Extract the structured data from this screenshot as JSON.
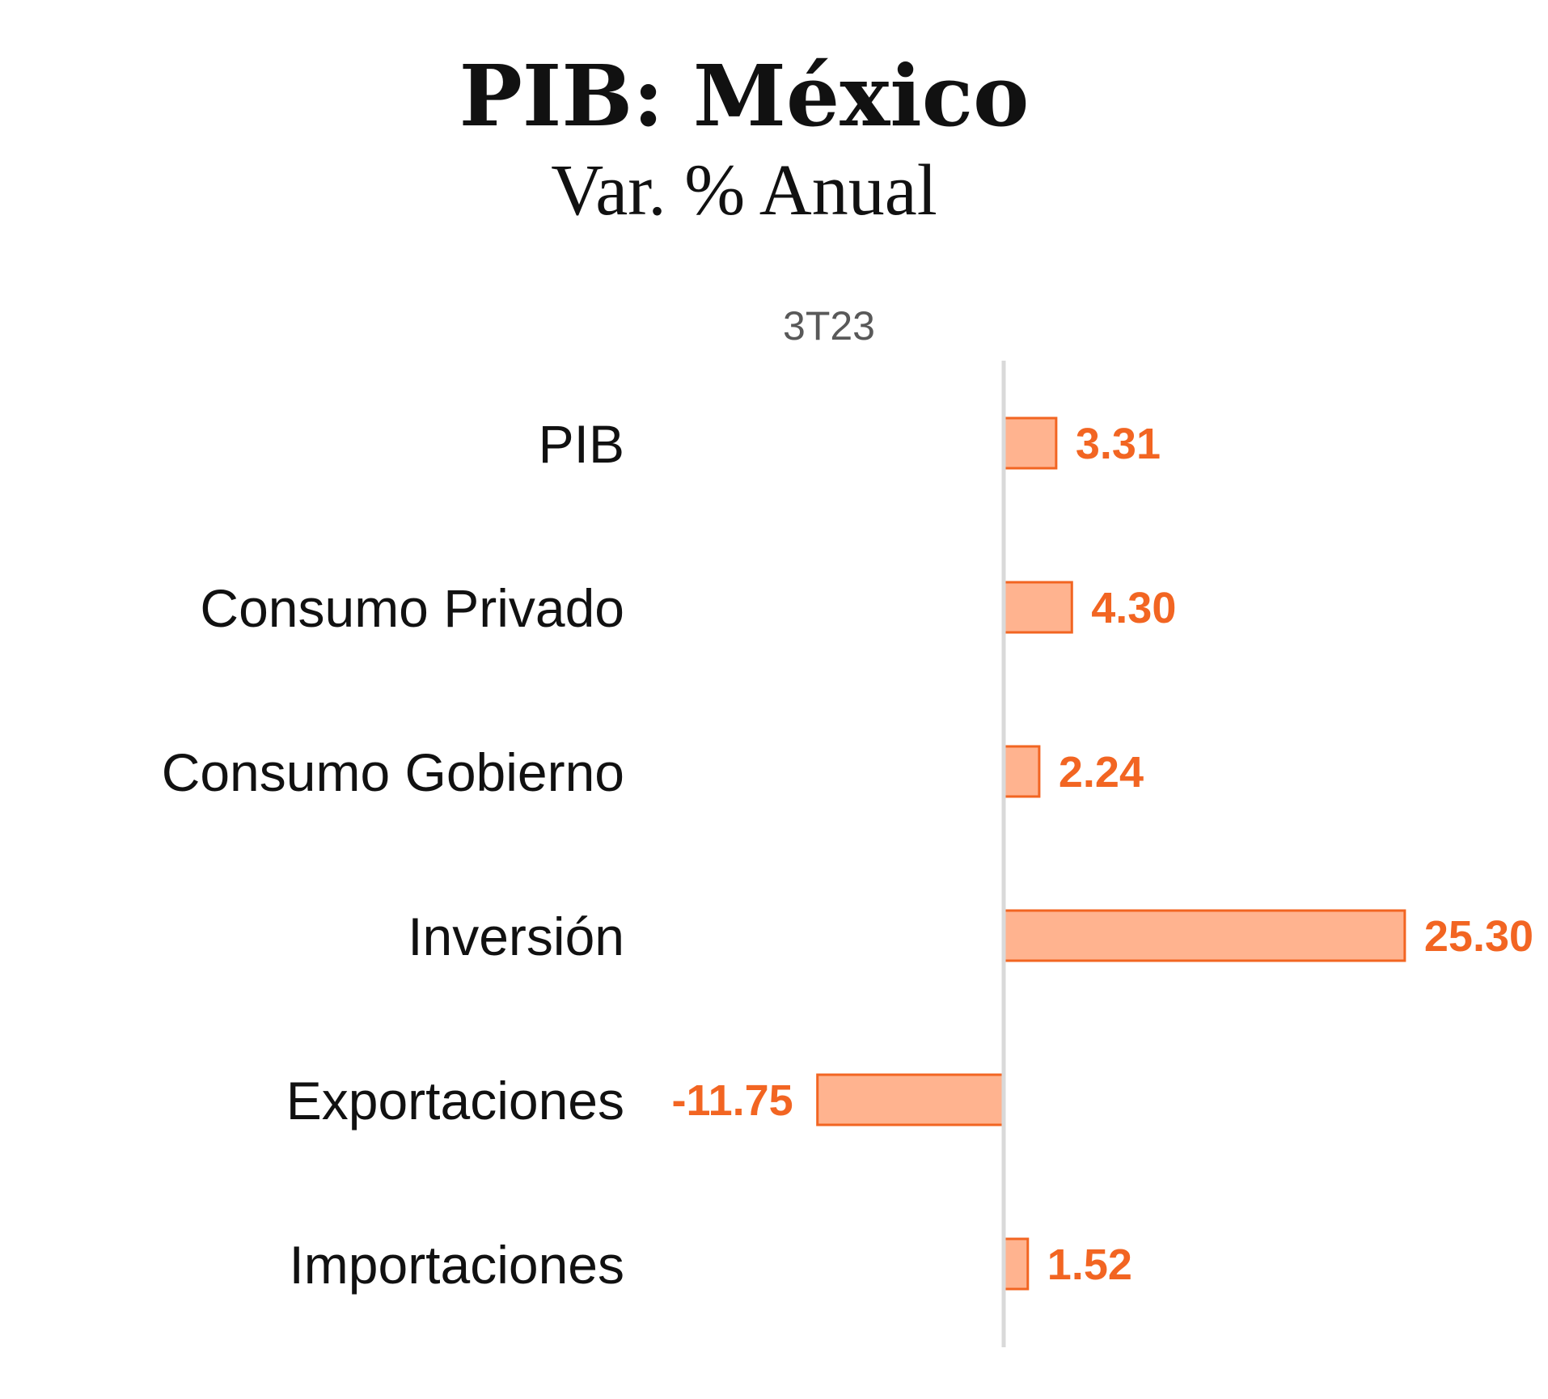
{
  "chart_data": {
    "type": "bar",
    "orientation": "horizontal",
    "title": "PIB: México",
    "subtitle": "Var. % Anual",
    "categories": [
      "PIB",
      "Consumo Privado",
      "Consumo Gobierno",
      "Inversión",
      "Exportaciones",
      "Importaciones"
    ],
    "series": [
      {
        "name": "3T23",
        "values": [
          3.31,
          4.3,
          2.24,
          25.3,
          -11.75,
          1.52
        ],
        "labels": [
          "3.31",
          "4.30",
          "2.24",
          "25.30",
          "-11.75",
          "1.52"
        ]
      }
    ],
    "xlim": [
      -27.5,
      33.8
    ],
    "grid": false,
    "legend": "none",
    "colors": {
      "bar_fill": "#FFB38F",
      "bar_stroke": "#F26522",
      "value_label": "#F26522",
      "axis": "#D9D9D9"
    }
  }
}
